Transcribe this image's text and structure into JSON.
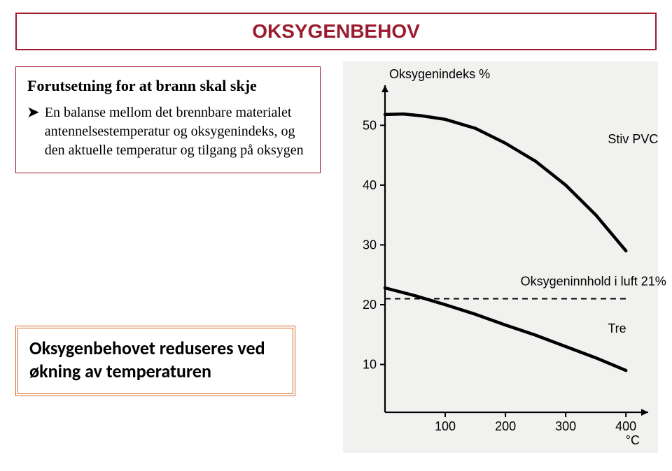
{
  "title": {
    "text": "OKSYGENBEHOV",
    "color": "#9b1c2e",
    "fontsize": 28,
    "border_color": "#9b1c2e"
  },
  "box1": {
    "heading": "Forutsetning for at brann skal skje",
    "heading_fontsize": 22,
    "bullet_text": "En balanse mellom det brennbare materialet antennelsestemperatur og oksygenindeks, og den aktuelle temperatur og tilgang på oksygen",
    "bullet_fontsize": 20,
    "border_color": "#9b1c2e"
  },
  "box2": {
    "text": "Oksygenbehovet reduseres ved økning av temperaturen",
    "fontsize": 26,
    "border_color": "#d86a2a"
  },
  "chart": {
    "type": "line",
    "background_color": "#f1f1ef",
    "axis_color": "#000000",
    "axis_width": 2.2,
    "tick_font": "sans-serif",
    "tick_fontsize": 18,
    "label_fontsize": 18,
    "y_label": "Oksygenindeks %",
    "x_unit": "°C",
    "xlim": [
      0,
      430
    ],
    "ylim": [
      2,
      56
    ],
    "x_ticks": [
      100,
      200,
      300,
      400
    ],
    "y_ticks": [
      10,
      20,
      30,
      40,
      50
    ],
    "series": [
      {
        "name": "Stiv PVC",
        "label": "Stiv PVC",
        "label_x": 370,
        "label_y": 47,
        "color": "#000000",
        "width": 4.5,
        "points": [
          {
            "x": 0,
            "y": 51.8
          },
          {
            "x": 30,
            "y": 51.9
          },
          {
            "x": 60,
            "y": 51.6
          },
          {
            "x": 100,
            "y": 51.0
          },
          {
            "x": 150,
            "y": 49.5
          },
          {
            "x": 200,
            "y": 47.0
          },
          {
            "x": 250,
            "y": 44.0
          },
          {
            "x": 300,
            "y": 40.0
          },
          {
            "x": 350,
            "y": 35.0
          },
          {
            "x": 400,
            "y": 29.0
          }
        ]
      },
      {
        "name": "Tre",
        "label": "Tre",
        "label_x": 370,
        "label_y": 15.3,
        "color": "#000000",
        "width": 4.5,
        "points": [
          {
            "x": 0,
            "y": 22.8
          },
          {
            "x": 50,
            "y": 21.5
          },
          {
            "x": 100,
            "y": 20.0
          },
          {
            "x": 150,
            "y": 18.4
          },
          {
            "x": 200,
            "y": 16.6
          },
          {
            "x": 250,
            "y": 14.9
          },
          {
            "x": 300,
            "y": 13.0
          },
          {
            "x": 350,
            "y": 11.1
          },
          {
            "x": 400,
            "y": 9.0
          }
        ]
      }
    ],
    "reference_line": {
      "y": 21,
      "x_start": 0,
      "x_end": 400,
      "dash": "8 6",
      "color": "#000000",
      "width": 2,
      "label": "Oksygeninnhold i luft 21%",
      "label_x": 225,
      "label_y": 23.2
    }
  }
}
